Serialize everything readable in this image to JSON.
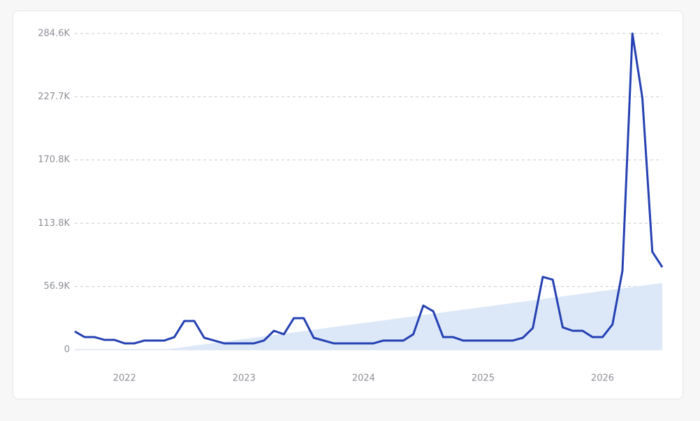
{
  "chart_data": {
    "type": "line",
    "categories": [
      null,
      null,
      null,
      null,
      null,
      "2022",
      null,
      null,
      null,
      null,
      null,
      null,
      null,
      null,
      null,
      null,
      null,
      "2023",
      null,
      null,
      null,
      null,
      null,
      null,
      null,
      null,
      null,
      null,
      null,
      "2024",
      null,
      null,
      null,
      null,
      null,
      null,
      null,
      null,
      null,
      null,
      null,
      "2025",
      null,
      null,
      null,
      null,
      null,
      null,
      null,
      null,
      null,
      null,
      null,
      "2026",
      null,
      null,
      null,
      null,
      null,
      null
    ],
    "series": [
      {
        "color": "#2541b2",
        "values": [
          16400,
          11300,
          11300,
          8800,
          8800,
          5700,
          5700,
          8200,
          8200,
          8200,
          11300,
          25800,
          25800,
          10700,
          8200,
          5700,
          5700,
          5700,
          5700,
          8200,
          17000,
          13900,
          28300,
          28300,
          10700,
          8200,
          5700,
          5700,
          5700,
          5700,
          5700,
          8200,
          8200,
          8200,
          13900,
          39700,
          34600,
          11300,
          11300,
          8200,
          8200,
          8200,
          8200,
          8200,
          8200,
          10700,
          19500,
          65500,
          63000,
          20100,
          17000,
          17000,
          11300,
          11300,
          22700,
          71100,
          284600,
          226700,
          88100,
          74300
        ]
      },
      {
        "type": "area",
        "color": "#dce8f8",
        "values": [
          null,
          null,
          null,
          null,
          null,
          null,
          null,
          null,
          null,
          0,
          1200,
          2400,
          3600,
          4800,
          6000,
          7200,
          8400,
          9600,
          10800,
          12000,
          13200,
          14400,
          15600,
          16800,
          18000,
          19200,
          20400,
          21600,
          22800,
          24000,
          25200,
          26400,
          27600,
          28800,
          30000,
          31200,
          32400,
          33600,
          34800,
          36000,
          37200,
          38400,
          39600,
          40800,
          42000,
          43200,
          44400,
          45600,
          46800,
          48000,
          49200,
          50400,
          51600,
          52800,
          54000,
          55200,
          56400,
          57600,
          58800,
          60000
        ]
      }
    ],
    "ylim": [
      0,
      284600
    ],
    "yticks": [
      0,
      {
        "value": 56900,
        "label": "56.9K"
      },
      {
        "value": 113800,
        "label": "113.8K"
      },
      {
        "value": 170800,
        "label": "170.8K"
      },
      {
        "value": 227700,
        "label": "227.7K"
      },
      {
        "value": 284600,
        "label": "284.6K"
      }
    ],
    "grid": true
  }
}
